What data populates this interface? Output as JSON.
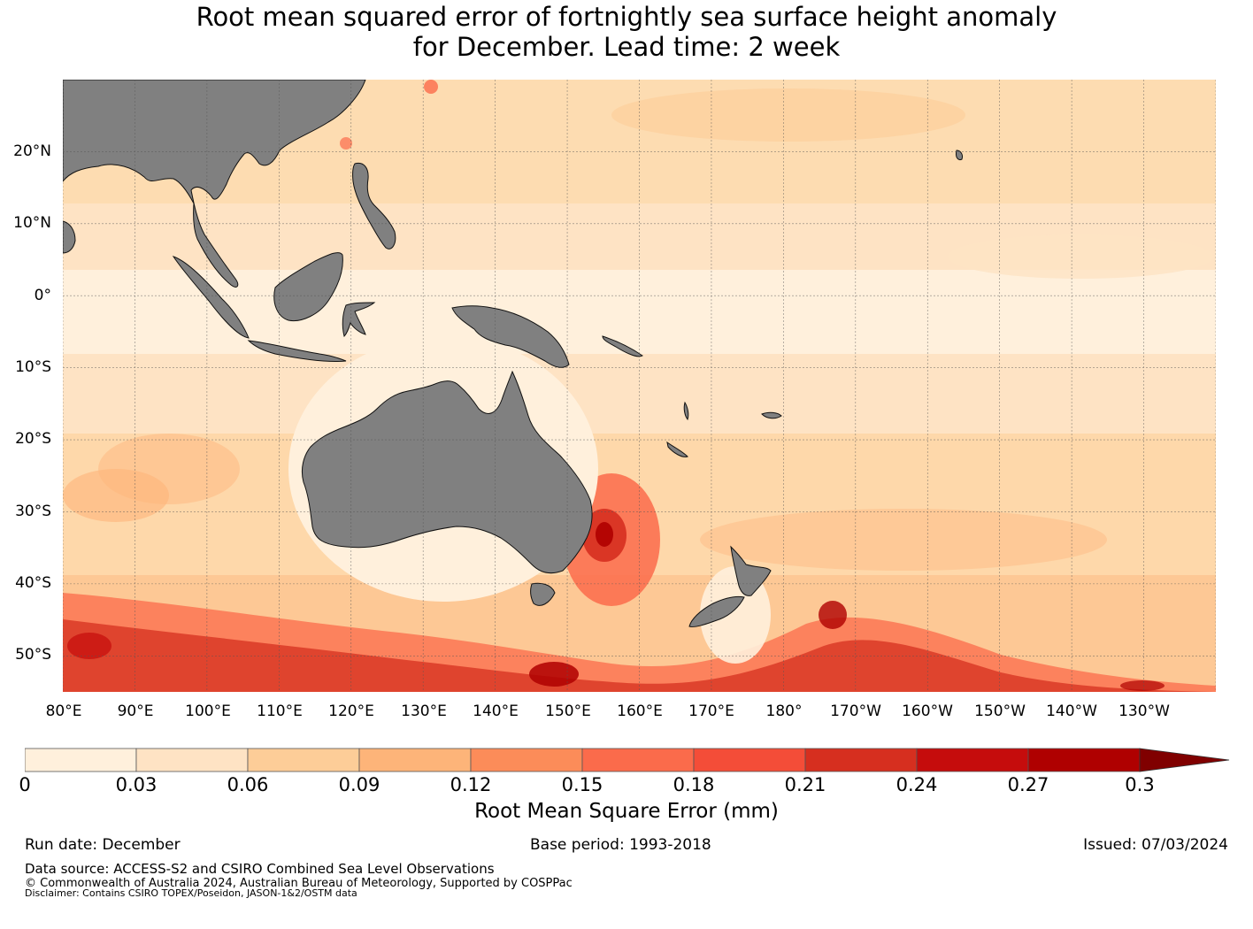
{
  "title": {
    "line1": "Root mean squared error of fortnightly sea surface height anomaly",
    "line2": "for December. Lead time: 2 week"
  },
  "map": {
    "lon_range": [
      80,
      240
    ],
    "lat_range": [
      -55,
      30
    ],
    "lat_labels": [
      "20°N",
      "10°N",
      "0°",
      "10°S",
      "20°S",
      "30°S",
      "40°S",
      "50°S"
    ],
    "lon_labels": [
      "80°E",
      "90°E",
      "100°E",
      "110°E",
      "120°E",
      "130°E",
      "140°E",
      "150°E",
      "160°E",
      "170°E",
      "180°",
      "170°W",
      "160°W",
      "150°W",
      "140°W",
      "130°W"
    ],
    "land_color": "#808080",
    "grid_color": "#555555"
  },
  "colorbar": {
    "ticks": [
      "0",
      "0.03",
      "0.06",
      "0.09",
      "0.12",
      "0.15",
      "0.18",
      "0.21",
      "0.24",
      "0.27",
      "0.3"
    ],
    "colors": [
      "#fff0dc",
      "#fee3c4",
      "#fdcd98",
      "#fdb479",
      "#fc8c59",
      "#fb6b4b",
      "#f44d38",
      "#d62f1f",
      "#c50c0c",
      "#af0000",
      "#800000"
    ],
    "label": "Root Mean Square Error (mm)"
  },
  "footer": {
    "run_date": "Run date: December",
    "base_period": "Base period: 1993-2018",
    "issued": "Issued: 07/03/2024",
    "data_source": "Data source: ACCESS-S2 and CSIRO Combined Sea Level Observations",
    "copyright": "© Commonwealth of Australia 2024, Australian Bureau of Meteorology, Supported by COSPPac",
    "disclaimer": "Disclaimer: Contains CSIRO TOPEX/Poseidon, JASON-1&2/OSTM data"
  }
}
